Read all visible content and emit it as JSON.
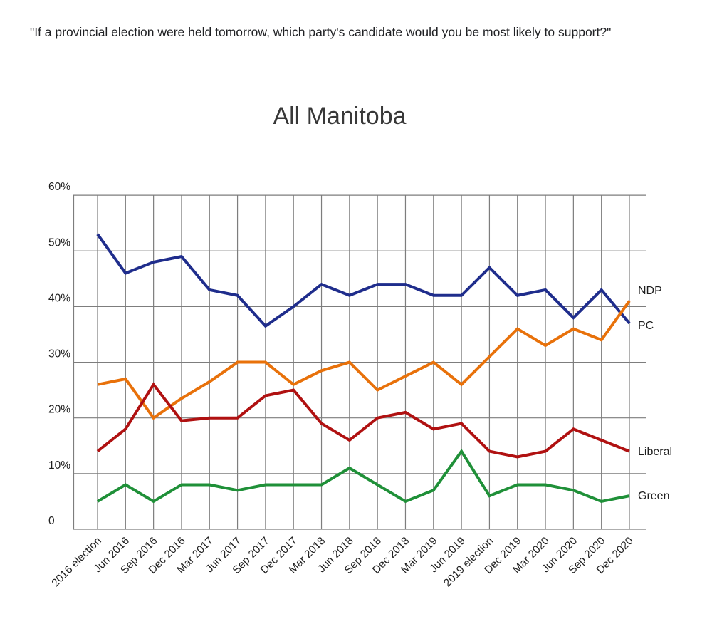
{
  "header": {
    "question": "\"If a provincial election were held tomorrow, which party's candidate would you be most likely to support?\"",
    "title": "All Manitoba"
  },
  "chart_data": {
    "type": "line",
    "title": "All Manitoba",
    "categories": [
      "2016 election",
      "Jun 2016",
      "Sep 2016",
      "Dec 2016",
      "Mar 2017",
      "Jun 2017",
      "Sep 2017",
      "Dec 2017",
      "Mar 2018",
      "Jun 2018",
      "Sep 2018",
      "Dec 2018",
      "Mar 2019",
      "Jun 2019",
      "2019 election",
      "Dec 2019",
      "Mar 2020",
      "Jun 2020",
      "Sep 2020",
      "Dec 2020"
    ],
    "series": [
      {
        "name": "PC",
        "color": "#1f2d8c",
        "values": [
          53,
          46,
          48,
          49,
          43,
          42,
          36.5,
          40,
          44,
          42,
          44,
          44,
          42,
          42,
          47,
          42,
          43,
          38,
          43,
          37
        ]
      },
      {
        "name": "NDP",
        "color": "#e8710a",
        "values": [
          26,
          27,
          20,
          23.5,
          26.5,
          30,
          30,
          26,
          28.5,
          30,
          25,
          27.5,
          30,
          26,
          31,
          36,
          33,
          36,
          34,
          41
        ]
      },
      {
        "name": "Liberal",
        "color": "#b01111",
        "values": [
          14,
          18,
          26,
          19.5,
          20,
          20,
          24,
          25,
          19,
          16,
          20,
          21,
          18,
          19,
          14,
          13,
          14,
          18,
          16,
          14
        ]
      },
      {
        "name": "Green",
        "color": "#1f9038",
        "values": [
          5,
          8,
          5,
          8,
          8,
          7,
          8,
          8,
          8,
          11,
          8,
          5,
          7,
          14,
          6,
          8,
          8,
          7,
          5,
          6
        ]
      }
    ],
    "y_axis": {
      "tick_labels": [
        "60%",
        "50%",
        "40%",
        "30%",
        "20%",
        "10%",
        "0"
      ],
      "tick_values": [
        60,
        50,
        40,
        30,
        20,
        10,
        0
      ],
      "range": [
        0,
        60
      ],
      "unit": "%"
    },
    "x_axis": {
      "label_rotation_deg": -45
    },
    "grid": true,
    "gridline_color": "#7d7d7d",
    "legend_position": "right-inline-labels"
  }
}
